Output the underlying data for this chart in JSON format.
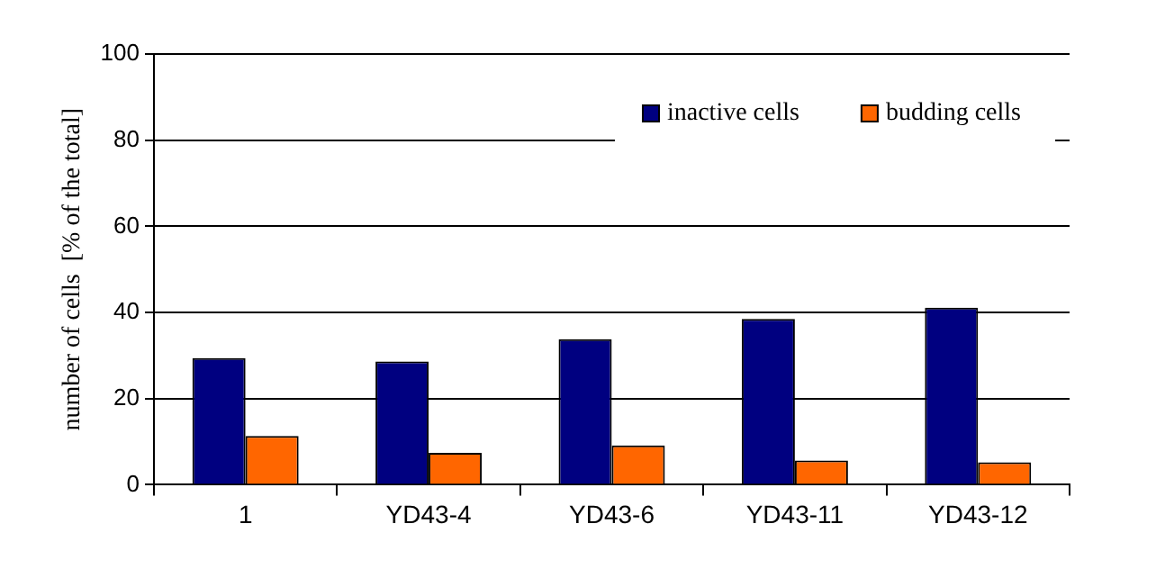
{
  "chart_data": {
    "type": "bar",
    "ylabel": "number of cells  [% of the total]",
    "categories": [
      "1",
      "YD43-4",
      "YD43-6",
      "YD43-11",
      "YD43-12"
    ],
    "series": [
      {
        "name": "inactive cells",
        "color": "#000080",
        "values": [
          29.4,
          28.6,
          33.8,
          38.5,
          41.1
        ]
      },
      {
        "name": "budding cells",
        "color": "#ff6600",
        "values": [
          11.3,
          7.4,
          9.1,
          5.6,
          5.2
        ]
      }
    ],
    "ylim": [
      0,
      100
    ],
    "yticks": [
      0,
      20,
      40,
      60,
      80,
      100
    ],
    "grid": "y",
    "legend": "top right"
  }
}
